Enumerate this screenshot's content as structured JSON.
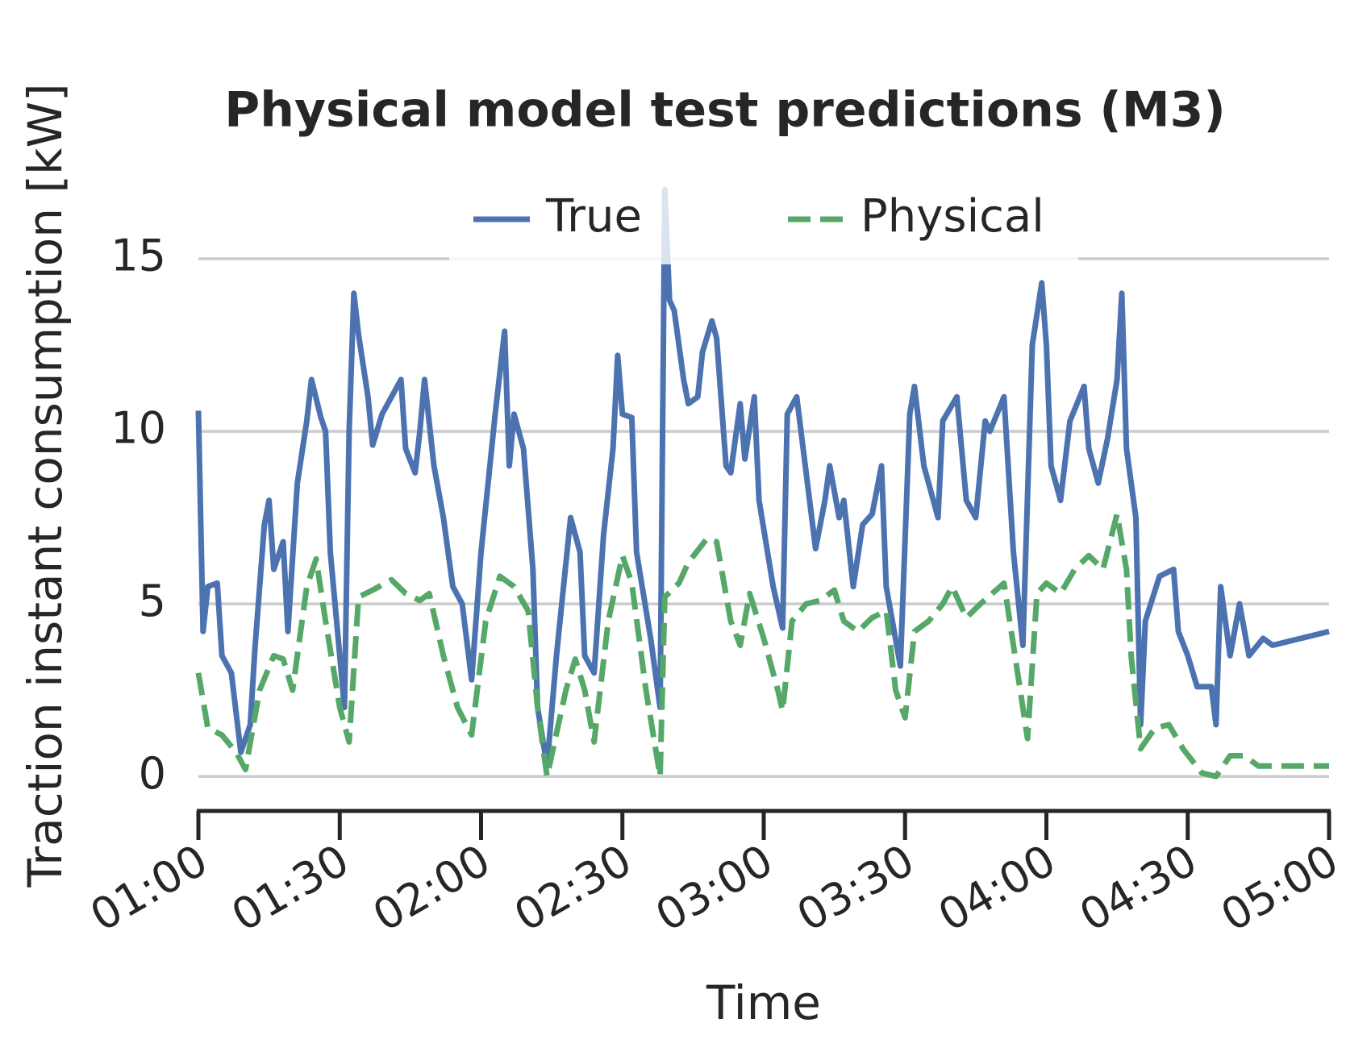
{
  "chart_data": {
    "type": "line",
    "title": "Physical model test predictions (M3)",
    "xlabel": "Time",
    "ylabel": "Traction instant consumption [kW]",
    "xlim": [
      "01:00",
      "05:00"
    ],
    "xticks": [
      "01:00",
      "01:30",
      "02:00",
      "02:30",
      "03:00",
      "03:30",
      "04:00",
      "04:30",
      "05:00"
    ],
    "ylim": [
      -1,
      17.5
    ],
    "yticks": [
      0,
      5,
      10,
      15
    ],
    "grid": true,
    "legend": "upper center",
    "series": [
      {
        "name": "True",
        "color": "#4c72b0",
        "style": "solid",
        "x": [
          "01:00",
          "01:01",
          "01:02",
          "01:04",
          "01:05",
          "01:07",
          "01:09",
          "01:11",
          "01:12",
          "01:14",
          "01:15",
          "01:16",
          "01:18",
          "01:19",
          "01:21",
          "01:23",
          "01:24",
          "01:26",
          "01:27",
          "01:28",
          "01:31",
          "01:32",
          "01:33",
          "01:34",
          "01:36",
          "01:37",
          "01:39",
          "01:41",
          "01:43",
          "01:44",
          "01:46",
          "01:47",
          "01:48",
          "01:50",
          "01:52",
          "01:54",
          "01:56",
          "01:58",
          "02:00",
          "02:03",
          "02:05",
          "02:06",
          "02:07",
          "02:09",
          "02:11",
          "02:12",
          "02:14",
          "02:16",
          "02:19",
          "02:21",
          "02:22",
          "02:24",
          "02:26",
          "02:28",
          "02:29",
          "02:30",
          "02:32",
          "02:33",
          "02:36",
          "02:38",
          "02:39",
          "02:40",
          "02:41",
          "02:43",
          "02:44",
          "02:46",
          "02:47",
          "02:49",
          "02:50",
          "02:52",
          "02:53",
          "02:55",
          "02:56",
          "02:58",
          "02:59",
          "03:02",
          "03:04",
          "03:05",
          "03:07",
          "03:09",
          "03:11",
          "03:13",
          "03:14",
          "03:16",
          "03:17",
          "03:19",
          "03:21",
          "03:23",
          "03:25",
          "03:26",
          "03:29",
          "03:31",
          "03:32",
          "03:34",
          "03:37",
          "03:38",
          "03:41",
          "03:43",
          "03:45",
          "03:47",
          "03:48",
          "03:51",
          "03:53",
          "03:55",
          "03:57",
          "03:59",
          "04:00",
          "04:01",
          "04:03",
          "04:05",
          "04:08",
          "04:09",
          "04:11",
          "04:13",
          "04:15",
          "04:16",
          "04:17",
          "04:19",
          "04:20",
          "04:21",
          "04:24",
          "04:27",
          "04:28",
          "04:30",
          "04:32",
          "04:35",
          "04:36",
          "04:37",
          "04:39",
          "04:41",
          "04:43",
          "04:46",
          "04:48",
          "05:00"
        ],
        "values": [
          10.6,
          4.2,
          5.5,
          5.6,
          3.5,
          3.0,
          0.7,
          1.5,
          3.7,
          7.3,
          8.0,
          6.0,
          6.8,
          4.2,
          8.5,
          10.3,
          11.5,
          10.4,
          10.0,
          6.5,
          2.0,
          10.0,
          14.0,
          12.8,
          11.0,
          9.6,
          10.5,
          11.0,
          11.5,
          9.5,
          8.8,
          10.0,
          11.5,
          9.0,
          7.5,
          5.5,
          5.0,
          2.8,
          6.5,
          10.5,
          12.9,
          9.0,
          10.5,
          9.5,
          6.0,
          2.0,
          0.3,
          3.5,
          7.5,
          6.5,
          3.5,
          3.0,
          7.0,
          9.5,
          12.2,
          10.5,
          10.4,
          6.5,
          4.0,
          2.0,
          17.0,
          13.8,
          13.5,
          11.5,
          10.8,
          11.0,
          12.3,
          13.2,
          12.7,
          9.0,
          8.8,
          10.8,
          9.2,
          11.0,
          8.0,
          5.5,
          4.3,
          10.5,
          11.0,
          8.8,
          6.6,
          8.0,
          9.0,
          7.5,
          8.0,
          5.5,
          7.3,
          7.6,
          9.0,
          5.5,
          3.2,
          10.5,
          11.3,
          9.0,
          7.5,
          10.3,
          11.0,
          8.0,
          7.5,
          10.3,
          10.0,
          11.0,
          6.5,
          3.8,
          12.5,
          14.3,
          12.5,
          9.0,
          8.0,
          10.3,
          11.3,
          9.5,
          8.5,
          9.8,
          11.5,
          14.0,
          9.5,
          7.5,
          1.5,
          4.5,
          5.8,
          6.0,
          4.2,
          3.5,
          2.6,
          2.6,
          1.5,
          5.5,
          3.5,
          5.0,
          3.5,
          4.0,
          3.8,
          4.2
        ]
      },
      {
        "name": "Physical",
        "color": "#55a868",
        "style": "dashed",
        "x": [
          "01:00",
          "01:02",
          "01:05",
          "01:08",
          "01:10",
          "01:13",
          "01:16",
          "01:18",
          "01:20",
          "01:23",
          "01:25",
          "01:27",
          "01:30",
          "01:32",
          "01:34",
          "01:37",
          "01:41",
          "01:44",
          "01:47",
          "01:49",
          "01:52",
          "01:55",
          "01:58",
          "02:01",
          "02:04",
          "02:07",
          "02:10",
          "02:12",
          "02:14",
          "02:18",
          "02:20",
          "02:22",
          "02:24",
          "02:27",
          "02:30",
          "02:32",
          "02:35",
          "02:38",
          "02:39",
          "02:42",
          "02:44",
          "02:48",
          "02:50",
          "02:53",
          "02:55",
          "02:57",
          "03:00",
          "03:03",
          "03:04",
          "03:06",
          "03:09",
          "03:12",
          "03:15",
          "03:17",
          "03:20",
          "03:23",
          "03:26",
          "03:28",
          "03:30",
          "03:32",
          "03:35",
          "03:38",
          "03:40",
          "03:43",
          "03:46",
          "03:51",
          "03:53",
          "03:56",
          "03:58",
          "04:00",
          "04:03",
          "04:06",
          "04:09",
          "04:12",
          "04:15",
          "04:17",
          "04:18",
          "04:20",
          "04:23",
          "04:26",
          "04:29",
          "04:33",
          "04:36",
          "04:39",
          "04:42",
          "04:45",
          "05:00"
        ],
        "values": [
          3.0,
          1.4,
          1.2,
          0.7,
          0.2,
          2.5,
          3.5,
          3.4,
          2.5,
          5.5,
          6.3,
          4.5,
          2.0,
          1.0,
          5.2,
          5.4,
          5.7,
          5.3,
          5.1,
          5.3,
          3.5,
          2.0,
          1.2,
          4.5,
          5.8,
          5.5,
          4.8,
          2.0,
          0.0,
          2.5,
          3.4,
          2.5,
          1.0,
          4.5,
          6.4,
          5.6,
          2.5,
          0.0,
          5.2,
          5.6,
          6.2,
          6.9,
          6.8,
          4.5,
          3.8,
          5.3,
          4.0,
          2.5,
          1.9,
          4.5,
          5.0,
          5.1,
          5.4,
          4.5,
          4.2,
          4.6,
          4.8,
          2.5,
          1.7,
          4.2,
          4.5,
          5.0,
          5.5,
          4.6,
          5.0,
          5.6,
          3.8,
          1.1,
          5.3,
          5.6,
          5.3,
          6.0,
          6.4,
          6.0,
          7.6,
          6.0,
          3.5,
          0.8,
          1.4,
          1.5,
          0.8,
          0.1,
          0.0,
          0.6,
          0.6,
          0.3,
          0.3
        ]
      }
    ]
  }
}
